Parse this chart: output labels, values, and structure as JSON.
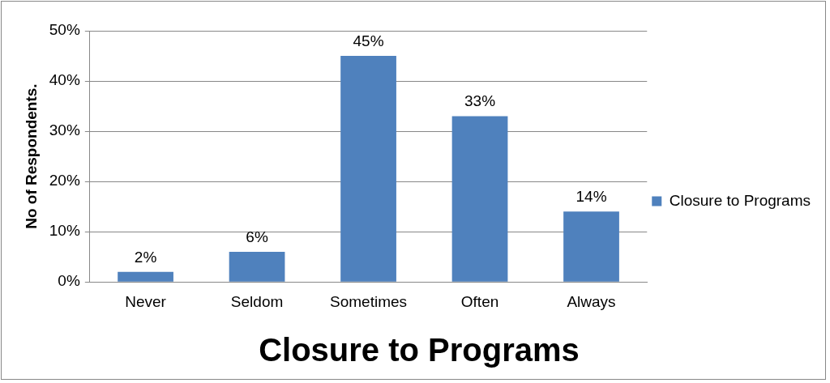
{
  "chart_data": {
    "type": "bar",
    "title": "Closure to Programs",
    "ylabel": "No of Respondents.",
    "categories": [
      "Never",
      "Seldom",
      "Sometimes",
      "Often",
      "Always"
    ],
    "series": [
      {
        "name": "Closure to Programs",
        "color": "#4f81bd",
        "values": [
          2,
          6,
          45,
          33,
          14
        ],
        "value_labels": [
          "2%",
          "6%",
          "45%",
          "33%",
          "14%"
        ]
      }
    ],
    "ylim": [
      0,
      50
    ],
    "yticks": [
      {
        "value": 0,
        "label": "0%"
      },
      {
        "value": 10,
        "label": "10%"
      },
      {
        "value": 20,
        "label": "20%"
      },
      {
        "value": 30,
        "label": "30%"
      },
      {
        "value": 40,
        "label": "40%"
      },
      {
        "value": 50,
        "label": "50%"
      }
    ],
    "grid": "y",
    "legend": "right"
  }
}
